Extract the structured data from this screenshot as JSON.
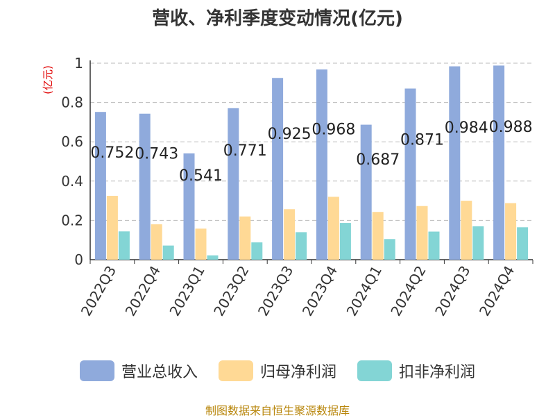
{
  "chart_data": {
    "type": "bar",
    "title": "营收、净利季度变动情况(亿元)",
    "ylabel": "(亿元)",
    "xlabel": "",
    "ylim": [
      0,
      1
    ],
    "yticks": [
      "0",
      "0.2",
      "0.4",
      "0.6",
      "0.8",
      "1"
    ],
    "grid": true,
    "legend_position": "bottom",
    "categories": [
      "2022Q3",
      "2022Q4",
      "2023Q1",
      "2023Q2",
      "2023Q3",
      "2023Q4",
      "2024Q1",
      "2024Q2",
      "2024Q3",
      "2024Q4"
    ],
    "series": [
      {
        "name": "营业总收入",
        "color": "#8faadc",
        "values": [
          0.752,
          0.743,
          0.541,
          0.771,
          0.925,
          0.968,
          0.687,
          0.871,
          0.984,
          0.988
        ],
        "labels": [
          "0.752",
          "0.743",
          "0.541",
          "0.771",
          "0.925",
          "0.968",
          "0.687",
          "0.871",
          "0.984",
          "0.988"
        ]
      },
      {
        "name": "归母净利润",
        "color": "#ffd995",
        "values": [
          0.325,
          0.18,
          0.158,
          0.22,
          0.257,
          0.32,
          0.243,
          0.273,
          0.3,
          0.288
        ]
      },
      {
        "name": "扣非净利润",
        "color": "#83d5d5",
        "values": [
          0.144,
          0.072,
          0.022,
          0.088,
          0.14,
          0.187,
          0.105,
          0.143,
          0.17,
          0.165
        ]
      }
    ]
  },
  "source_note": "制图数据来自恒生聚源数据库"
}
